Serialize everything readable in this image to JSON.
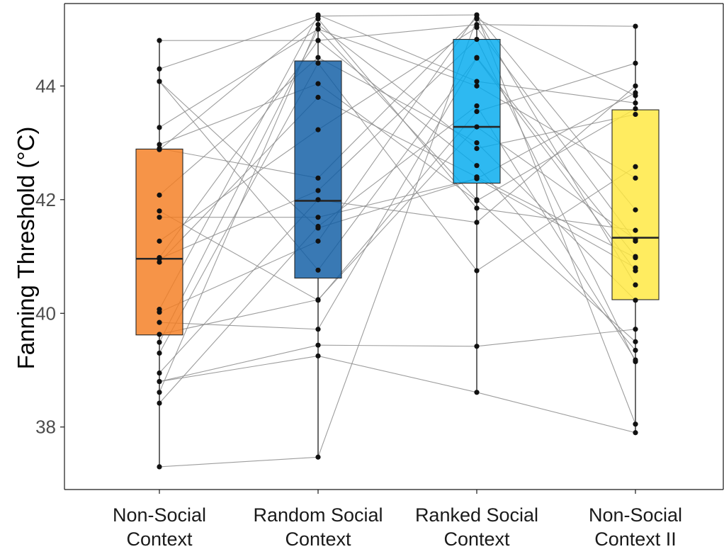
{
  "chart_data": {
    "type": "box",
    "ylabel": "Fanning Threshold (°C)",
    "xlabel": "",
    "ylim": [
      36.9,
      45.45
    ],
    "yticks": [
      38,
      40,
      42,
      44
    ],
    "grid": false,
    "categories": [
      {
        "label": [
          "Non-Social",
          "Context"
        ],
        "color": "#F47C20",
        "q1": 39.62,
        "median": 40.96,
        "q3": 42.89,
        "whisker_low": 37.3,
        "whisker_high": 44.8
      },
      {
        "label": [
          "Random Social",
          "Context"
        ],
        "color": "#0D5CA3",
        "q1": 40.62,
        "median": 41.98,
        "q3": 44.44,
        "whisker_low": 37.47,
        "whisker_high": 45.25
      },
      {
        "label": [
          "Ranked Social",
          "Context"
        ],
        "color": "#00A9EE",
        "q1": 42.29,
        "median": 43.28,
        "q3": 44.82,
        "whisker_low": 38.61,
        "whisker_high": 45.25
      },
      {
        "label": [
          "Non-Social",
          "Context II"
        ],
        "color": "#FFE83D",
        "q1": 40.24,
        "median": 41.33,
        "q3": 43.58,
        "whisker_low": 37.9,
        "whisker_high": 45.08
      }
    ],
    "subjects": [
      [
        44.8,
        44.8,
        45.08,
        45.05
      ],
      [
        44.3,
        45.23,
        45.25,
        38.05
      ],
      [
        44.08,
        41.5,
        42.37,
        43.88
      ],
      [
        44.08,
        40.76,
        44.5,
        41.0
      ],
      [
        43.27,
        45.0,
        44.0,
        42.38
      ],
      [
        42.97,
        44.04,
        41.98,
        43.6
      ],
      [
        42.9,
        42.38,
        45.2,
        40.5
      ],
      [
        42.88,
        45.18,
        41.85,
        41.46
      ],
      [
        42.08,
        44.5,
        43.0,
        40.23
      ],
      [
        41.8,
        40.23,
        43.55,
        44.4
      ],
      [
        41.69,
        41.69,
        42.37,
        40.8
      ],
      [
        41.27,
        43.23,
        45.03,
        41.27
      ],
      [
        40.98,
        44.8,
        42.6,
        39.35
      ],
      [
        40.96,
        42.16,
        44.82,
        39.15
      ],
      [
        40.9,
        43.8,
        42.4,
        40.98
      ],
      [
        40.07,
        45.25,
        44.08,
        43.7
      ],
      [
        40.02,
        41.27,
        45.25,
        41.82
      ],
      [
        39.84,
        39.72,
        44.49,
        40.75
      ],
      [
        39.63,
        40.24,
        43.28,
        41.3
      ],
      [
        39.49,
        45.0,
        42.0,
        39.5
      ],
      [
        39.3,
        44.4,
        40.75,
        42.58
      ],
      [
        38.95,
        42.0,
        41.6,
        44.0
      ],
      [
        38.8,
        39.44,
        39.42,
        39.72
      ],
      [
        38.8,
        39.25,
        38.61,
        37.9
      ],
      [
        38.61,
        45.08,
        42.9,
        43.5
      ],
      [
        38.42,
        41.53,
        43.65,
        39.18
      ],
      [
        37.3,
        37.47,
        45.18,
        43.83
      ]
    ]
  }
}
